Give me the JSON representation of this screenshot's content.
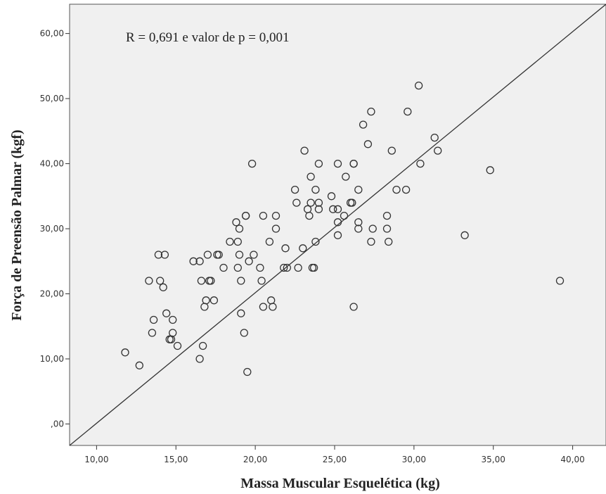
{
  "chart_data": {
    "type": "scatter",
    "title": "",
    "xlabel": "Massa Muscular Esquelética (kg)",
    "ylabel": "Força de Preensão Palmar (kgf)",
    "annotation": "R = 0,691 e valor de p = 0,001",
    "xlim": [
      8.3,
      42.1
    ],
    "ylim": [
      -3.3,
      64.5
    ],
    "x_ticks": [
      10,
      15,
      20,
      25,
      30,
      35,
      40
    ],
    "x_tick_labels": [
      "10,00",
      "15,00",
      "20,00",
      "25,00",
      "30,00",
      "35,00",
      "40,00"
    ],
    "y_ticks": [
      0,
      10,
      20,
      30,
      40,
      50,
      60
    ],
    "y_tick_labels": [
      ",00",
      "10,00",
      "20,00",
      "30,00",
      "40,00",
      "50,00",
      "60,00"
    ],
    "grid": false,
    "legend": "none",
    "fit_line": {
      "x": [
        8.3,
        42.1
      ],
      "y": [
        -3.3,
        64.5
      ]
    },
    "points": [
      {
        "x": 11.8,
        "y": 11
      },
      {
        "x": 12.7,
        "y": 9
      },
      {
        "x": 13.3,
        "y": 22
      },
      {
        "x": 13.5,
        "y": 14
      },
      {
        "x": 13.6,
        "y": 16
      },
      {
        "x": 13.9,
        "y": 26
      },
      {
        "x": 14.0,
        "y": 22
      },
      {
        "x": 14.2,
        "y": 21
      },
      {
        "x": 14.3,
        "y": 26
      },
      {
        "x": 14.4,
        "y": 17
      },
      {
        "x": 14.6,
        "y": 13
      },
      {
        "x": 14.7,
        "y": 13
      },
      {
        "x": 14.8,
        "y": 16
      },
      {
        "x": 14.8,
        "y": 14
      },
      {
        "x": 15.1,
        "y": 12
      },
      {
        "x": 16.1,
        "y": 25
      },
      {
        "x": 16.5,
        "y": 10
      },
      {
        "x": 16.5,
        "y": 25
      },
      {
        "x": 16.6,
        "y": 22
      },
      {
        "x": 16.7,
        "y": 12
      },
      {
        "x": 16.8,
        "y": 18
      },
      {
        "x": 16.9,
        "y": 19
      },
      {
        "x": 17.0,
        "y": 26
      },
      {
        "x": 17.1,
        "y": 22
      },
      {
        "x": 17.2,
        "y": 22
      },
      {
        "x": 17.4,
        "y": 19
      },
      {
        "x": 17.6,
        "y": 26
      },
      {
        "x": 17.7,
        "y": 26
      },
      {
        "x": 18.0,
        "y": 24
      },
      {
        "x": 18.4,
        "y": 28
      },
      {
        "x": 18.8,
        "y": 31
      },
      {
        "x": 18.9,
        "y": 28
      },
      {
        "x": 18.9,
        "y": 24
      },
      {
        "x": 19.0,
        "y": 30
      },
      {
        "x": 19.0,
        "y": 26
      },
      {
        "x": 19.1,
        "y": 22
      },
      {
        "x": 19.1,
        "y": 17
      },
      {
        "x": 19.3,
        "y": 14
      },
      {
        "x": 19.4,
        "y": 32
      },
      {
        "x": 19.4,
        "y": 32
      },
      {
        "x": 19.5,
        "y": 8
      },
      {
        "x": 19.6,
        "y": 25
      },
      {
        "x": 19.8,
        "y": 40
      },
      {
        "x": 19.9,
        "y": 26
      },
      {
        "x": 20.3,
        "y": 24
      },
      {
        "x": 20.4,
        "y": 22
      },
      {
        "x": 20.5,
        "y": 18
      },
      {
        "x": 20.5,
        "y": 32
      },
      {
        "x": 20.9,
        "y": 28
      },
      {
        "x": 21.0,
        "y": 19
      },
      {
        "x": 21.1,
        "y": 18
      },
      {
        "x": 21.3,
        "y": 30
      },
      {
        "x": 21.3,
        "y": 32
      },
      {
        "x": 21.8,
        "y": 24
      },
      {
        "x": 21.9,
        "y": 27
      },
      {
        "x": 22.0,
        "y": 24
      },
      {
        "x": 22.5,
        "y": 36
      },
      {
        "x": 22.6,
        "y": 34
      },
      {
        "x": 22.7,
        "y": 24
      },
      {
        "x": 23.0,
        "y": 27
      },
      {
        "x": 23.1,
        "y": 42
      },
      {
        "x": 23.3,
        "y": 33
      },
      {
        "x": 23.4,
        "y": 32
      },
      {
        "x": 23.5,
        "y": 38
      },
      {
        "x": 23.5,
        "y": 34
      },
      {
        "x": 23.6,
        "y": 24
      },
      {
        "x": 23.7,
        "y": 24
      },
      {
        "x": 23.8,
        "y": 28
      },
      {
        "x": 23.8,
        "y": 36
      },
      {
        "x": 24.0,
        "y": 34
      },
      {
        "x": 24.0,
        "y": 33
      },
      {
        "x": 24.0,
        "y": 40
      },
      {
        "x": 24.8,
        "y": 35
      },
      {
        "x": 24.9,
        "y": 33
      },
      {
        "x": 25.2,
        "y": 40
      },
      {
        "x": 25.2,
        "y": 33
      },
      {
        "x": 25.2,
        "y": 31
      },
      {
        "x": 25.2,
        "y": 29
      },
      {
        "x": 25.6,
        "y": 32
      },
      {
        "x": 25.7,
        "y": 38
      },
      {
        "x": 26.0,
        "y": 34
      },
      {
        "x": 26.1,
        "y": 34
      },
      {
        "x": 26.2,
        "y": 40
      },
      {
        "x": 26.2,
        "y": 40
      },
      {
        "x": 26.2,
        "y": 18
      },
      {
        "x": 26.5,
        "y": 36
      },
      {
        "x": 26.5,
        "y": 31
      },
      {
        "x": 26.5,
        "y": 30
      },
      {
        "x": 26.8,
        "y": 46
      },
      {
        "x": 27.1,
        "y": 43
      },
      {
        "x": 27.3,
        "y": 48
      },
      {
        "x": 27.3,
        "y": 28
      },
      {
        "x": 27.4,
        "y": 30
      },
      {
        "x": 28.3,
        "y": 32
      },
      {
        "x": 28.3,
        "y": 30
      },
      {
        "x": 28.4,
        "y": 28
      },
      {
        "x": 28.6,
        "y": 42
      },
      {
        "x": 28.9,
        "y": 36
      },
      {
        "x": 29.5,
        "y": 36
      },
      {
        "x": 29.6,
        "y": 48
      },
      {
        "x": 30.3,
        "y": 52
      },
      {
        "x": 30.4,
        "y": 40
      },
      {
        "x": 31.3,
        "y": 44
      },
      {
        "x": 31.5,
        "y": 42
      },
      {
        "x": 33.2,
        "y": 29
      },
      {
        "x": 34.8,
        "y": 39
      },
      {
        "x": 39.2,
        "y": 22
      }
    ]
  }
}
